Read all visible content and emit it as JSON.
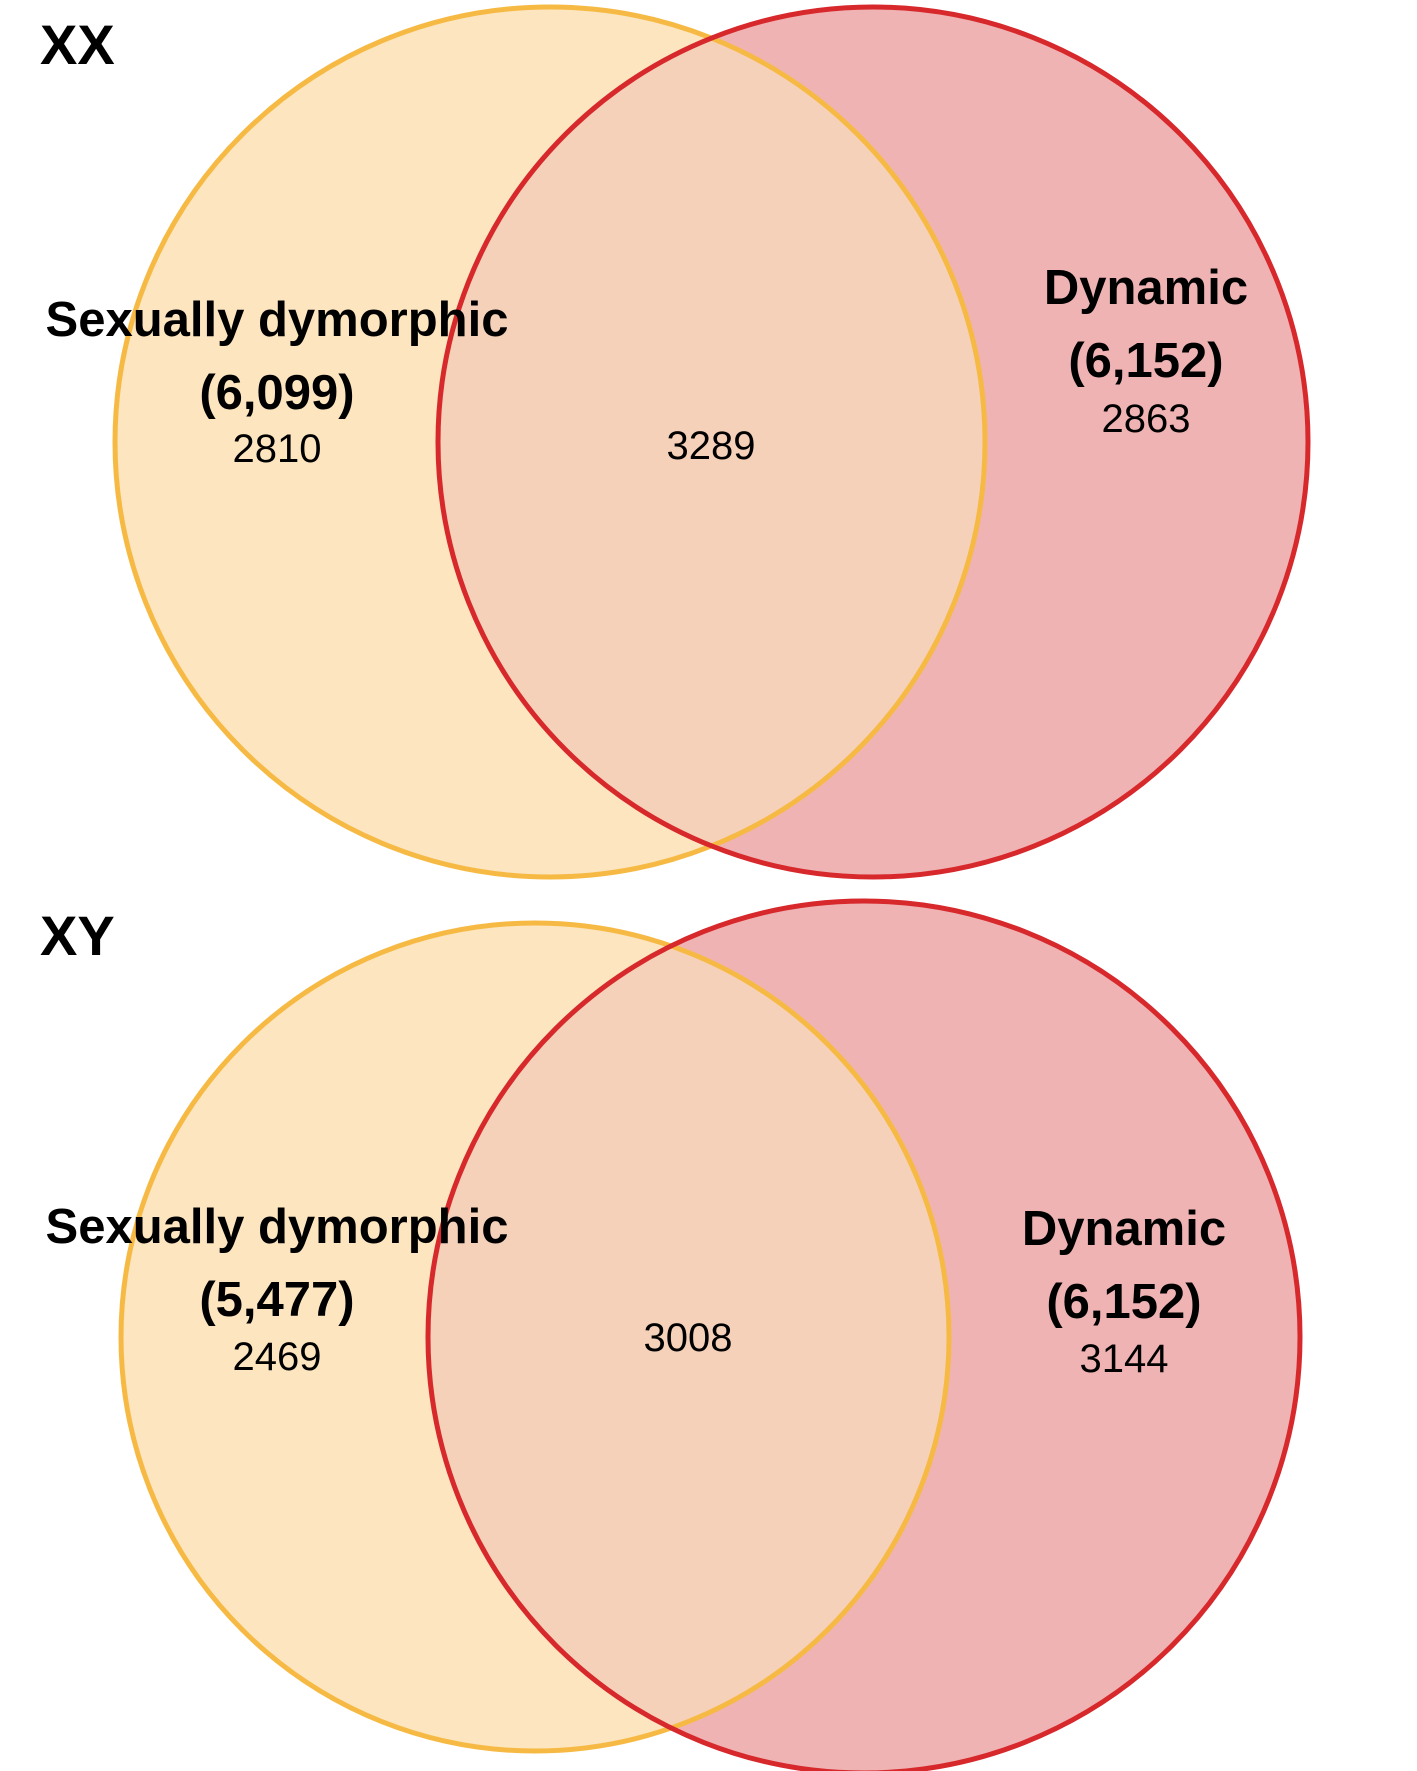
{
  "colors": {
    "set_a_fill": "#FCE5BF",
    "set_a_stroke": "#F6BA44",
    "set_b_fill": "#EFB3B3",
    "set_b_stroke": "#D7282C",
    "overlap_fill": "#F6D1B9",
    "text": "#000000"
  },
  "panels": [
    {
      "title": "XX",
      "set_a": {
        "name": "Sexually dymorphic",
        "total": "(6,099)",
        "only": "2810"
      },
      "set_b": {
        "name": "Dynamic",
        "total": "(6,152)",
        "only": "2863"
      },
      "overlap": "3289"
    },
    {
      "title": "XY",
      "set_a": {
        "name": "Sexually dymorphic",
        "total": "(5,477)",
        "only": "2469"
      },
      "set_b": {
        "name": "Dynamic",
        "total": "(6,152)",
        "only": "3144"
      },
      "overlap": "3008"
    }
  ]
}
